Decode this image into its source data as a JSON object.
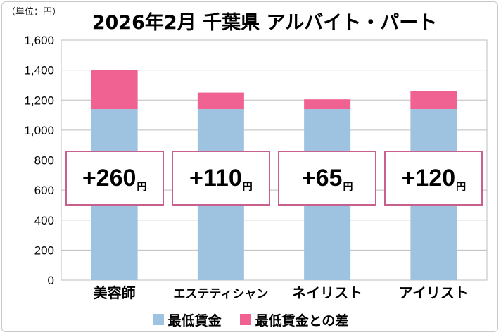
{
  "unit_label": "（単位：円）",
  "title": "2026年2月 千葉県 アルバイト・パート",
  "colors": {
    "base": "#9ec3e0",
    "diff": "#f06292",
    "box_border": "#c8608e",
    "grid": "#bdbdbd"
  },
  "chart_data": {
    "type": "bar",
    "stacked": true,
    "categories": [
      "美容師",
      "エステティシャン",
      "ネイリスト",
      "アイリスト"
    ],
    "series": [
      {
        "name": "最低賃金",
        "values": [
          1140,
          1140,
          1140,
          1140
        ]
      },
      {
        "name": "最低賃金との差",
        "values": [
          260,
          110,
          65,
          120
        ]
      }
    ],
    "ylim": [
      0,
      1600
    ],
    "yticks": [
      "0",
      "200",
      "400",
      "600",
      "800",
      "1,000",
      "1,200",
      "1,400",
      "1,600"
    ],
    "grid": true,
    "legend_position": "bottom",
    "annotations": [
      {
        "text": "+260",
        "unit": "円"
      },
      {
        "text": "+110",
        "unit": "円"
      },
      {
        "text": "+65",
        "unit": "円"
      },
      {
        "text": "+120",
        "unit": "円"
      }
    ]
  },
  "legend": [
    {
      "label": "最低賃金",
      "color": "#9ec3e0"
    },
    {
      "label": "最低賃金との差",
      "color": "#f06292"
    }
  ]
}
